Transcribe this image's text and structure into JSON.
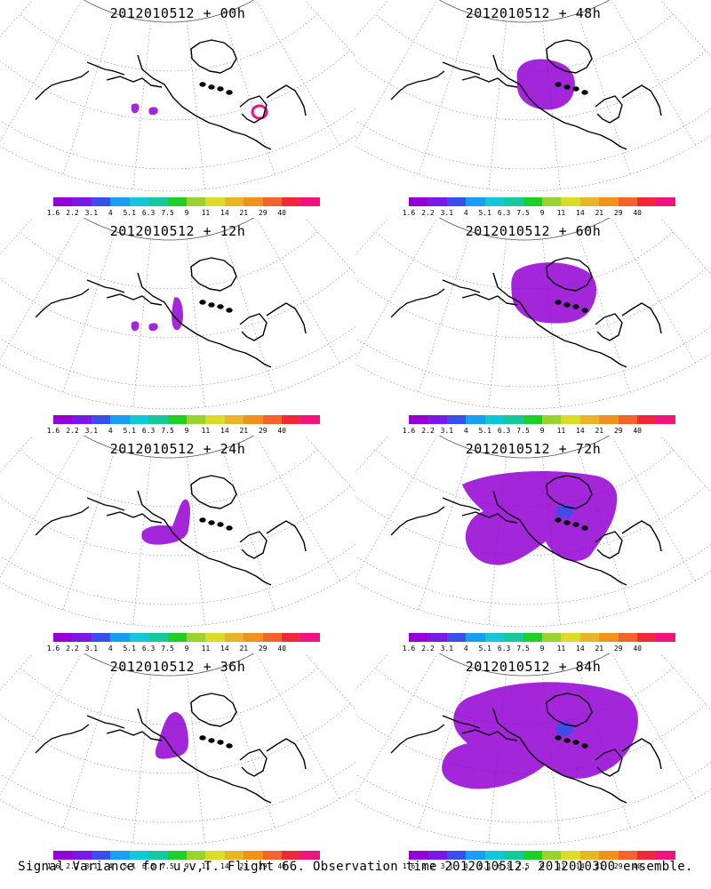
{
  "panels": [
    {
      "title": "2012010512 + 00h"
    },
    {
      "title": "2012010512 + 48h"
    },
    {
      "title": "2012010512 + 12h"
    },
    {
      "title": "2012010512 + 60h"
    },
    {
      "title": "2012010512 + 24h"
    },
    {
      "title": "2012010512 + 72h"
    },
    {
      "title": "2012010512 + 36h"
    },
    {
      "title": "2012010512 + 84h"
    }
  ],
  "colorbar": {
    "colors": [
      "#9400d3",
      "#7a19e6",
      "#3a4fe8",
      "#1a9ff0",
      "#12c7d8",
      "#16c89a",
      "#1ecf28",
      "#9ad232",
      "#dcdc28",
      "#e8b428",
      "#f0921e",
      "#f2642a",
      "#f0283c",
      "#f0147f"
    ],
    "labels": [
      "1.6",
      "2.2",
      "3.1",
      "4",
      "5.1",
      "6.3",
      "7.5",
      "9",
      "11",
      "14",
      "21",
      "29",
      "40"
    ]
  },
  "footer": "Signal Variance for u,v,T. Flight 66. Observation time 2012010512. 2012010300 ensemble."
}
